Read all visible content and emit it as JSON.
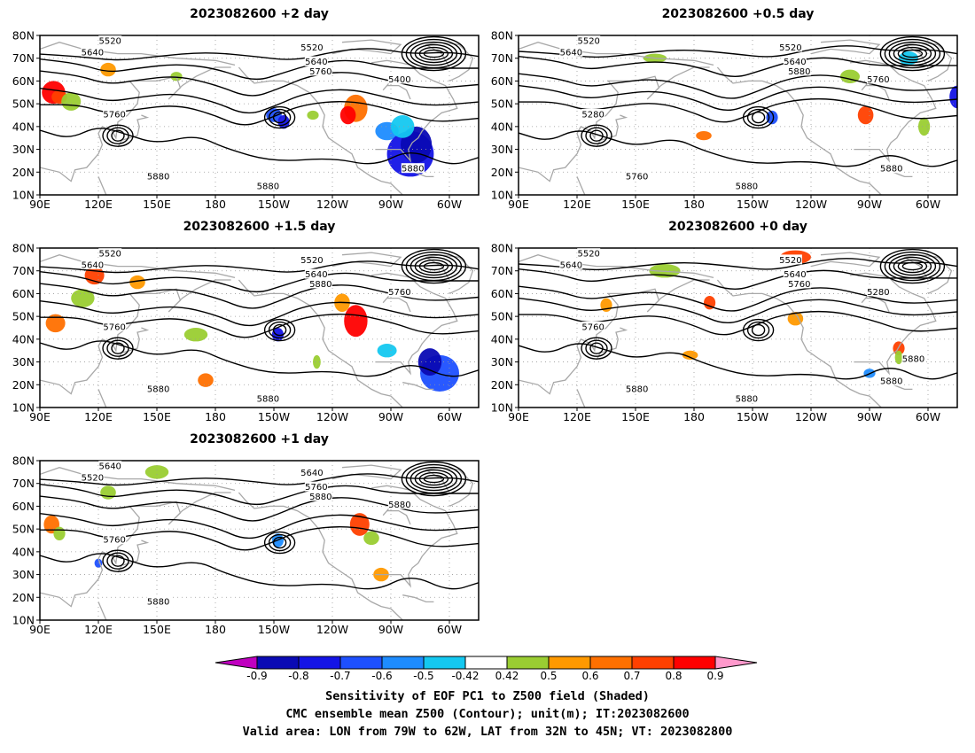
{
  "panels": [
    {
      "title": "2023082600 +2 day",
      "contour_labels": [
        "5520",
        "5640",
        "5520",
        "5640",
        "5760",
        "5400",
        "5760",
        "5880",
        "5880",
        "5880"
      ]
    },
    {
      "title": "2023082600 +0.5 day",
      "contour_labels": [
        "5520",
        "5640",
        "5520",
        "5640",
        "5280",
        "5760",
        "5880",
        "5760",
        "5880",
        "5880"
      ]
    },
    {
      "title": "2023082600 +1.5 day",
      "contour_labels": [
        "5520",
        "5640",
        "5520",
        "5640",
        "5760",
        "5760",
        "5880",
        "5880",
        "5880"
      ]
    },
    {
      "title": "2023082600 +0 day",
      "contour_labels": [
        "5520",
        "5640",
        "5520",
        "5640",
        "5760",
        "5280",
        "5760",
        "5880",
        "5880",
        "5880",
        "5880"
      ]
    },
    {
      "title": "2023082600 +1 day",
      "contour_labels": [
        "5640",
        "5520",
        "5640",
        "5760",
        "5760",
        "5880",
        "5880",
        "5880"
      ]
    }
  ],
  "lat_ticks": [
    "80N",
    "70N",
    "60N",
    "50N",
    "40N",
    "30N",
    "20N",
    "10N"
  ],
  "lon_ticks": [
    "90E",
    "120E",
    "150E",
    "180",
    "150W",
    "120W",
    "90W",
    "60W"
  ],
  "colorbar": {
    "ticks": [
      "-0.9",
      "-0.8",
      "-0.7",
      "-0.6",
      "-0.5",
      "-0.42",
      "0.42",
      "0.5",
      "0.6",
      "0.7",
      "0.8",
      "0.9"
    ],
    "colors": [
      "#c000c0",
      "#0a0ab4",
      "#1414e6",
      "#1e50ff",
      "#1e8cff",
      "#14c8f0",
      "#ffffff",
      "#9acd32",
      "#ff9900",
      "#ff7000",
      "#ff4000",
      "#ff0000",
      "#ff99cc"
    ]
  },
  "caption": {
    "line1": "Sensitivity of EOF PC1 to Z500 field (Shaded)",
    "line2": "CMC ensemble mean Z500 (Contour); unit(m); IT:2023082600",
    "line3": "Valid area: LON from 79W to 62W, LAT from 32N to 45N; VT: 2023082800"
  },
  "colors": {
    "contour": "#000000",
    "coast": "#a8a8a8",
    "grid": "#999999"
  }
}
